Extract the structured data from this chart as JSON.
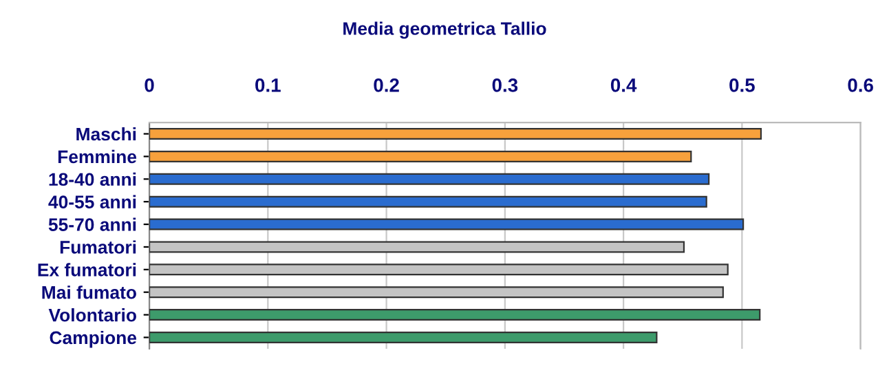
{
  "chart_data": {
    "type": "bar",
    "orientation": "horizontal",
    "title": "Media geometrica Tallio",
    "categories": [
      "Maschi",
      "Femmine",
      "18-40 anni",
      "40-55 anni",
      "55-70 anni",
      "Fumatori",
      "Ex fumatori",
      "Mai fumato",
      "Volontario",
      "Campione"
    ],
    "values": [
      0.516,
      0.457,
      0.472,
      0.47,
      0.501,
      0.451,
      0.488,
      0.484,
      0.515,
      0.428
    ],
    "colors": [
      "#f7a13c",
      "#f7a13c",
      "#2a6ccf",
      "#2a6ccf",
      "#2a6ccf",
      "#c4c4c4",
      "#c4c4c4",
      "#c4c4c4",
      "#3d9b6b",
      "#3d9b6b"
    ],
    "xlim": [
      0,
      0.6
    ],
    "xticks": [
      0,
      0.1,
      0.2,
      0.3,
      0.4,
      0.5,
      0.6
    ],
    "grid": "x"
  }
}
